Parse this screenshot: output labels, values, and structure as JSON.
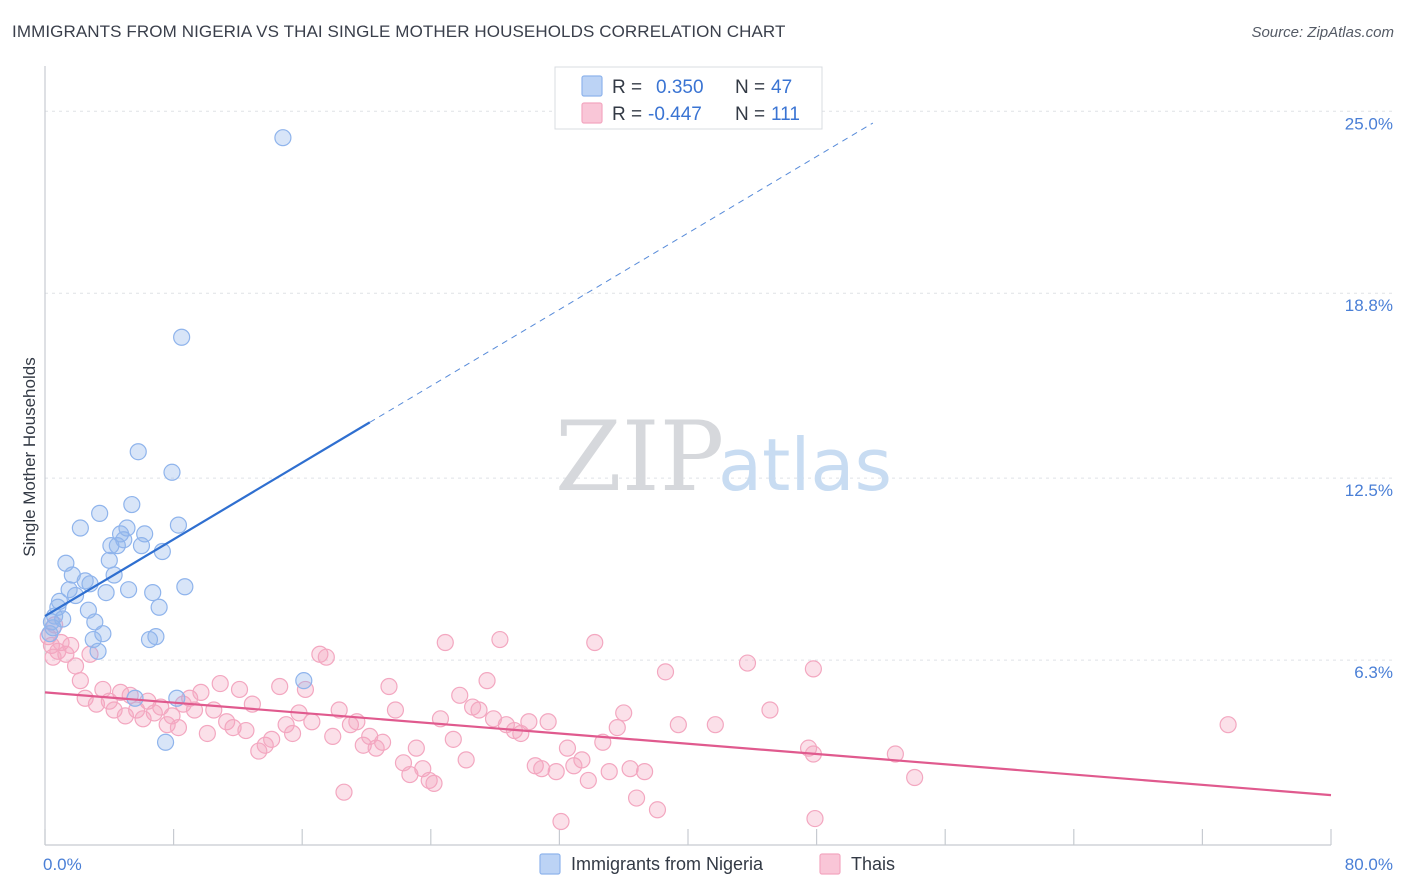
{
  "title": "IMMIGRANTS FROM NIGERIA VS THAI SINGLE MOTHER HOUSEHOLDS CORRELATION CHART",
  "source": "Source: ZipAtlas.com",
  "watermark": {
    "zip": "ZIP",
    "atlas": "atlas"
  },
  "chart_data": {
    "type": "scatter",
    "xlabel": "",
    "ylabel": "Single Mother Households",
    "xlim": [
      0,
      80
    ],
    "ylim": [
      0,
      26.1
    ],
    "x_tick_labels": [
      "0.0%",
      "80.0%"
    ],
    "y_ticks": [
      6.3,
      12.5,
      18.8,
      25.0
    ],
    "y_tick_labels": [
      "6.3%",
      "12.5%",
      "18.8%",
      "25.0%"
    ],
    "legend": {
      "position": "top-center",
      "rows": [
        {
          "r_label": "R =",
          "r_value": "0.350",
          "n_label": "N =",
          "n_value": "47"
        },
        {
          "r_label": "R =",
          "r_value": "-0.447",
          "n_label": "N =",
          "n_value": "111"
        }
      ]
    },
    "series": [
      {
        "name": "Immigrants from Nigeria",
        "color": "#8fb4ec",
        "line_color": "#2f6fd0",
        "trend": {
          "solid": [
            [
              0,
              7.8
            ],
            [
              20.2,
              14.4
            ]
          ],
          "dashed": [
            [
              20.2,
              14.4
            ],
            [
              51.5,
              24.6
            ]
          ]
        },
        "points": [
          [
            0.3,
            7.2
          ],
          [
            0.4,
            7.6
          ],
          [
            0.5,
            7.4
          ],
          [
            0.6,
            7.8
          ],
          [
            0.8,
            8.1
          ],
          [
            0.9,
            8.3
          ],
          [
            1.1,
            7.7
          ],
          [
            1.3,
            9.6
          ],
          [
            1.5,
            8.7
          ],
          [
            1.7,
            9.2
          ],
          [
            1.9,
            8.5
          ],
          [
            2.2,
            10.8
          ],
          [
            2.5,
            9.0
          ],
          [
            2.7,
            8.0
          ],
          [
            2.8,
            8.9
          ],
          [
            3.0,
            7.0
          ],
          [
            3.1,
            7.6
          ],
          [
            3.3,
            6.6
          ],
          [
            3.4,
            11.3
          ],
          [
            3.6,
            7.2
          ],
          [
            3.8,
            8.6
          ],
          [
            4.0,
            9.7
          ],
          [
            4.1,
            10.2
          ],
          [
            4.3,
            9.2
          ],
          [
            4.5,
            10.2
          ],
          [
            4.7,
            10.6
          ],
          [
            4.9,
            10.4
          ],
          [
            5.1,
            10.8
          ],
          [
            5.2,
            8.7
          ],
          [
            5.4,
            11.6
          ],
          [
            5.6,
            5.0
          ],
          [
            5.8,
            13.4
          ],
          [
            6.0,
            10.2
          ],
          [
            6.2,
            10.6
          ],
          [
            6.5,
            7.0
          ],
          [
            6.7,
            8.6
          ],
          [
            6.9,
            7.1
          ],
          [
            7.1,
            8.1
          ],
          [
            7.3,
            10.0
          ],
          [
            7.5,
            3.5
          ],
          [
            7.9,
            12.7
          ],
          [
            8.3,
            10.9
          ],
          [
            8.5,
            17.3
          ],
          [
            8.7,
            8.8
          ],
          [
            8.2,
            5.0
          ],
          [
            14.8,
            24.1
          ],
          [
            16.1,
            5.6
          ]
        ]
      },
      {
        "name": "Thais",
        "color": "#f3a7c0",
        "line_color": "#e05a8e",
        "trend": {
          "solid": [
            [
              0,
              5.2
            ],
            [
              80,
              1.7
            ]
          ]
        },
        "points": [
          [
            0.2,
            7.1
          ],
          [
            0.4,
            6.8
          ],
          [
            0.6,
            7.5
          ],
          [
            0.8,
            6.6
          ],
          [
            1.0,
            6.9
          ],
          [
            1.3,
            6.5
          ],
          [
            1.6,
            6.8
          ],
          [
            1.9,
            6.1
          ],
          [
            2.2,
            5.6
          ],
          [
            2.5,
            5.0
          ],
          [
            2.8,
            6.5
          ],
          [
            3.2,
            4.8
          ],
          [
            3.6,
            5.3
          ],
          [
            4.0,
            4.9
          ],
          [
            4.3,
            4.6
          ],
          [
            4.7,
            5.2
          ],
          [
            5.0,
            4.4
          ],
          [
            5.3,
            5.1
          ],
          [
            5.7,
            4.6
          ],
          [
            6.1,
            4.3
          ],
          [
            6.4,
            4.9
          ],
          [
            6.8,
            4.5
          ],
          [
            7.2,
            4.7
          ],
          [
            7.6,
            4.1
          ],
          [
            7.9,
            4.4
          ],
          [
            8.3,
            4.0
          ],
          [
            8.6,
            4.8
          ],
          [
            9.0,
            5.0
          ],
          [
            9.3,
            4.6
          ],
          [
            9.7,
            5.2
          ],
          [
            10.1,
            3.8
          ],
          [
            10.5,
            4.6
          ],
          [
            10.9,
            5.5
          ],
          [
            11.3,
            4.2
          ],
          [
            11.7,
            4.0
          ],
          [
            12.1,
            5.3
          ],
          [
            12.5,
            3.9
          ],
          [
            12.9,
            4.8
          ],
          [
            13.3,
            3.2
          ],
          [
            13.7,
            3.4
          ],
          [
            14.1,
            3.6
          ],
          [
            14.6,
            5.4
          ],
          [
            15.0,
            4.1
          ],
          [
            15.4,
            3.8
          ],
          [
            15.8,
            4.5
          ],
          [
            16.2,
            5.3
          ],
          [
            16.6,
            4.2
          ],
          [
            17.1,
            6.5
          ],
          [
            17.5,
            6.4
          ],
          [
            17.9,
            3.7
          ],
          [
            18.3,
            4.6
          ],
          [
            18.6,
            1.8
          ],
          [
            19.0,
            4.1
          ],
          [
            19.4,
            4.2
          ],
          [
            19.8,
            3.4
          ],
          [
            20.2,
            3.7
          ],
          [
            20.6,
            3.3
          ],
          [
            21.0,
            3.5
          ],
          [
            21.4,
            5.4
          ],
          [
            21.8,
            4.6
          ],
          [
            22.3,
            2.8
          ],
          [
            22.7,
            2.4
          ],
          [
            23.1,
            3.3
          ],
          [
            23.5,
            2.6
          ],
          [
            23.9,
            2.2
          ],
          [
            24.2,
            2.1
          ],
          [
            24.6,
            4.3
          ],
          [
            24.9,
            6.9
          ],
          [
            25.4,
            3.6
          ],
          [
            25.8,
            5.1
          ],
          [
            26.2,
            2.9
          ],
          [
            26.6,
            4.7
          ],
          [
            27.0,
            4.6
          ],
          [
            27.5,
            5.6
          ],
          [
            27.9,
            4.3
          ],
          [
            28.3,
            7.0
          ],
          [
            28.7,
            4.1
          ],
          [
            29.2,
            3.9
          ],
          [
            29.6,
            3.8
          ],
          [
            30.1,
            4.2
          ],
          [
            30.5,
            2.7
          ],
          [
            30.9,
            2.6
          ],
          [
            31.3,
            4.2
          ],
          [
            31.8,
            2.5
          ],
          [
            32.1,
            0.8
          ],
          [
            32.5,
            3.3
          ],
          [
            32.9,
            2.7
          ],
          [
            33.4,
            2.9
          ],
          [
            33.8,
            2.2
          ],
          [
            34.2,
            6.9
          ],
          [
            34.7,
            3.5
          ],
          [
            35.1,
            2.5
          ],
          [
            35.6,
            4.0
          ],
          [
            36.0,
            4.5
          ],
          [
            36.4,
            2.6
          ],
          [
            36.8,
            1.6
          ],
          [
            37.3,
            2.5
          ],
          [
            38.1,
            1.2
          ],
          [
            38.6,
            5.9
          ],
          [
            39.4,
            4.1
          ],
          [
            41.7,
            4.1
          ],
          [
            43.7,
            6.2
          ],
          [
            45.1,
            4.6
          ],
          [
            47.8,
            6.0
          ],
          [
            47.5,
            3.3
          ],
          [
            47.8,
            3.1
          ],
          [
            47.9,
            0.9
          ],
          [
            52.9,
            3.1
          ],
          [
            54.1,
            2.3
          ],
          [
            73.6,
            4.1
          ],
          [
            0.5,
            6.4
          ]
        ]
      }
    ]
  }
}
